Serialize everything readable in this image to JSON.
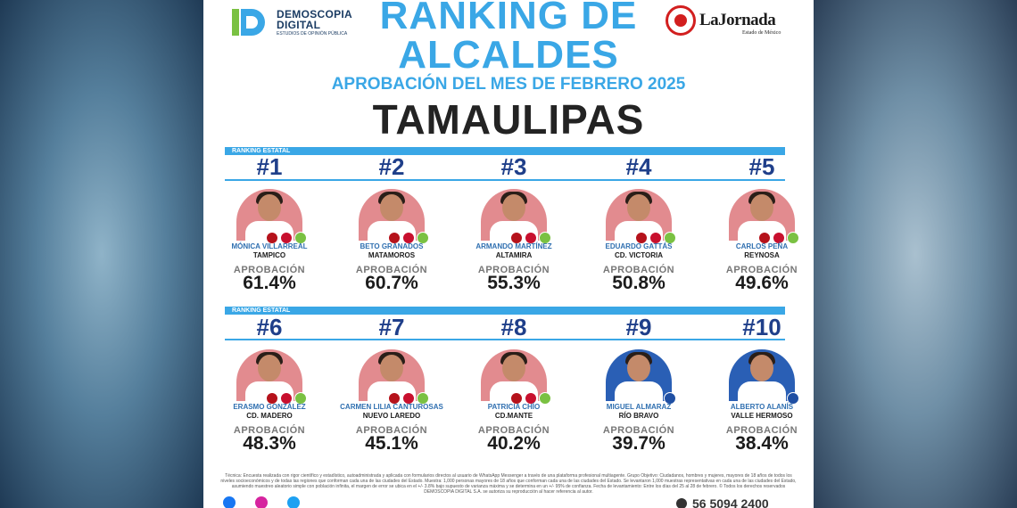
{
  "header": {
    "brand_line1": "DEMOSCOPIA",
    "brand_line2": "DIGITAL",
    "brand_tagline": "ESTUDIOS DE OPINIÓN PÚBLICA",
    "title_line1": "RANKING DE",
    "title_line2": "ALCALDES",
    "subtitle": "APROBACIÓN DEL MES DE FEBRERO 2025",
    "state": "TAMAULIPAS",
    "partner_name": "LaJornada",
    "partner_sub": "Estado de México"
  },
  "ranking_label": "RANKING ESTATAL",
  "approval_label": "APROBACIÓN",
  "chart_data": {
    "type": "table",
    "title": "RANKING DE ALCALDES",
    "subtitle": "APROBACIÓN DEL MES DE FEBRERO 2025",
    "region": "TAMAULIPAS",
    "rows": [
      {
        "rank": "#1",
        "name": "MÓNICA VILLARREAL",
        "city": "TAMPICO",
        "approval": "61.4%",
        "value": 61.4
      },
      {
        "rank": "#2",
        "name": "BETO GRANADOS",
        "city": "MATAMOROS",
        "approval": "60.7%",
        "value": 60.7
      },
      {
        "rank": "#3",
        "name": "ARMANDO MARTÍNEZ",
        "city": "ALTAMIRA",
        "approval": "55.3%",
        "value": 55.3
      },
      {
        "rank": "#4",
        "name": "EDUARDO GATTÁS",
        "city": "CD. VICTORIA",
        "approval": "50.8%",
        "value": 50.8
      },
      {
        "rank": "#5",
        "name": "CARLOS PEÑA",
        "city": "REYNOSA",
        "approval": "49.6%",
        "value": 49.6
      },
      {
        "rank": "#6",
        "name": "ERASMO GONZÁLEZ",
        "city": "CD. MADERO",
        "approval": "48.3%",
        "value": 48.3
      },
      {
        "rank": "#7",
        "name": "CARMEN LILIA CANTUROSAS",
        "city": "NUEVO LAREDO",
        "approval": "45.1%",
        "value": 45.1
      },
      {
        "rank": "#8",
        "name": "PATRICIA CHÍO",
        "city": "CD.MANTE",
        "approval": "40.2%",
        "value": 40.2
      },
      {
        "rank": "#9",
        "name": "MIGUEL ALMARAZ",
        "city": "RÍO BRAVO",
        "approval": "39.7%",
        "value": 39.7
      },
      {
        "rank": "#10",
        "name": "ALBERTO ALANÍS",
        "city": "VALLE HERMOSO",
        "approval": "38.4%",
        "value": 38.4
      }
    ]
  },
  "footer": {
    "methodology": "Técnica: Encuesta realizada con rigor científico y estadístico, autoadministrada y aplicada con formularios directos al usuario de WhatsApp Messenger a través de una plataforma profesional multiagente. Grupo Objetivo: Ciudadanos, hombres y mujeres, mayores de 18 años de todos los niveles socioeconómicos y de todas las regiones que conforman cada una de las ciudades del Estado. Muestra: 1,000 personas mayores de 18 años que conforman cada una de las ciudades del Estado. Se levantaron 1,000 muestras representativas en cada una de las ciudades del Estado, asumiendo muestreo aleatorio simple con población infinita, el margen de error se ubica en el +/- 3.8% bajo supuesto de varianza máxima y se determina en un +/- 95% de confianza. Fecha de levantamiento: Entre los días del 25 al 28 de febrero. © Todos los derechos reservados DEMOSCOPIA DIGITAL S.A. se autoriza su reproducción al hacer referencia al autor.",
    "phone": "56 5094 2400",
    "social": [
      "facebook-icon",
      "instagram-icon",
      "twitter-icon"
    ]
  },
  "colors": {
    "accent": "#3aa7e6",
    "rank_number": "#1f3f8a",
    "name": "#2f6fb0",
    "photo_bg": "#e28b8f",
    "photo_bg_pan": "#2a5fb5"
  }
}
